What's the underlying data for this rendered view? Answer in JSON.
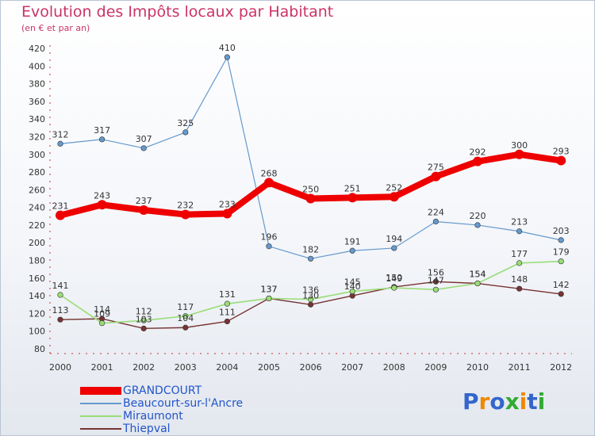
{
  "chart_data": {
    "type": "line",
    "title": "Evolution des Impôts locaux par Habitant",
    "subtitle": "(en € et par an)",
    "xlabel": "",
    "ylabel": "",
    "x": [
      "2000",
      "2001",
      "2002",
      "2003",
      "2004",
      "2005",
      "2006",
      "2007",
      "2008",
      "2009",
      "2010",
      "2011",
      "2012"
    ],
    "ylim": [
      80,
      420
    ],
    "yticks": [
      80,
      100,
      120,
      140,
      160,
      180,
      200,
      220,
      240,
      260,
      280,
      300,
      320,
      340,
      360,
      380,
      400,
      420
    ],
    "grid": false,
    "legend_position": "bottom-left",
    "series": [
      {
        "name": "GRANDCOURT",
        "color": "#ee0000",
        "values": [
          231,
          243,
          237,
          232,
          233,
          268,
          250,
          251,
          252,
          275,
          292,
          300,
          293
        ]
      },
      {
        "name": "Beaucourt-sur-l'Ancre",
        "color": "#6699cc",
        "values": [
          312,
          317,
          307,
          325,
          410,
          196,
          182,
          191,
          194,
          224,
          220,
          213,
          203
        ]
      },
      {
        "name": "Miraumont",
        "color": "#99dd77",
        "values": [
          141,
          109,
          112,
          117,
          131,
          137,
          136,
          145,
          149,
          147,
          154,
          177,
          179
        ]
      },
      {
        "name": "Thiepval",
        "color": "#773333",
        "values": [
          113,
          114,
          103,
          104,
          111,
          137,
          130,
          140,
          150,
          156,
          154,
          148,
          142
        ]
      }
    ],
    "data_labels": [
      [
        "231",
        "243",
        "237",
        "232",
        "233",
        "268",
        "250",
        "251",
        "252",
        "275",
        "292",
        "300",
        "293"
      ],
      [
        "312",
        "317",
        "307",
        "325",
        "410",
        "196",
        "182",
        "191",
        "194",
        "224",
        "220",
        "213",
        "203"
      ],
      [
        "141",
        "109",
        "112",
        "117",
        "131",
        "137",
        "136",
        "145",
        "149",
        "147",
        "154",
        "177",
        "179"
      ],
      [
        "113",
        "114",
        "103",
        "104",
        "111",
        "137",
        "130",
        "140",
        "150",
        "156",
        "154",
        "148",
        "142"
      ]
    ]
  },
  "brand": "Proxiti"
}
